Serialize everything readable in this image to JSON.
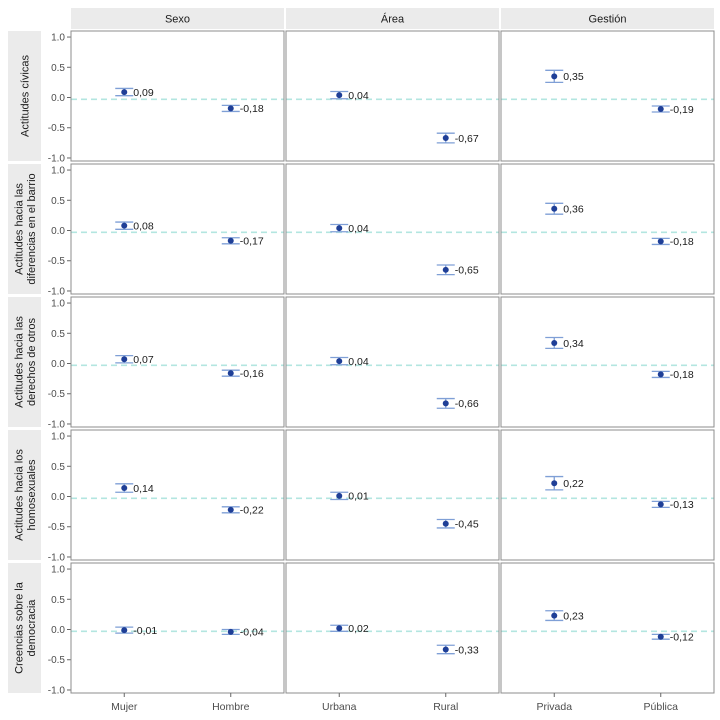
{
  "chart_data": {
    "type": "scatter",
    "column_facets": [
      "Sexo",
      "Área",
      "Gestión"
    ],
    "row_facets": [
      [
        "Actitudes cívicas"
      ],
      [
        "Actitudes hacia las",
        "diferencias en el barrio"
      ],
      [
        "Actitudes hacia las",
        "derechos de otros"
      ],
      [
        "Actitudes hacia los",
        "homosexuales"
      ],
      [
        "Creencias sobre la",
        "democracia"
      ]
    ],
    "x_categories": [
      [
        "Mujer",
        "Hombre"
      ],
      [
        "Urbana",
        "Rural"
      ],
      [
        "Privada",
        "Pública"
      ]
    ],
    "ylim": [
      -1.05,
      1.1
    ],
    "yticks": [
      1.0,
      0.5,
      0.0,
      -0.5,
      -1.0
    ],
    "ytick_labels": [
      "1.0",
      "0.5",
      "0.0",
      "-0.5",
      "-1.0"
    ],
    "reference_line_y": -0.03,
    "values": [
      [
        [
          0.09,
          -0.18
        ],
        [
          0.04,
          -0.67
        ],
        [
          0.35,
          -0.19
        ]
      ],
      [
        [
          0.08,
          -0.17
        ],
        [
          0.04,
          -0.65
        ],
        [
          0.36,
          -0.18
        ]
      ],
      [
        [
          0.07,
          -0.16
        ],
        [
          0.04,
          -0.66
        ],
        [
          0.34,
          -0.18
        ]
      ],
      [
        [
          0.14,
          -0.22
        ],
        [
          0.01,
          -0.45
        ],
        [
          0.22,
          -0.13
        ]
      ],
      [
        [
          -0.01,
          -0.04
        ],
        [
          0.02,
          -0.33
        ],
        [
          0.23,
          -0.12
        ]
      ]
    ],
    "value_labels": [
      [
        [
          "0,09",
          "-0,18"
        ],
        [
          "0,04",
          "-0,67"
        ],
        [
          "0,35",
          "-0,19"
        ]
      ],
      [
        [
          "0,08",
          "-0,17"
        ],
        [
          "0,04",
          "-0,65"
        ],
        [
          "0,36",
          "-0,18"
        ]
      ],
      [
        [
          "0,07",
          "-0,16"
        ],
        [
          "0,04",
          "-0,66"
        ],
        [
          "0,34",
          "-0,18"
        ]
      ],
      [
        [
          "0,14",
          "-0,22"
        ],
        [
          "0,01",
          "-0,45"
        ],
        [
          "0,22",
          "-0,13"
        ]
      ],
      [
        [
          "-0,01",
          "-0,04"
        ],
        [
          "0,02",
          "-0,33"
        ],
        [
          "0,23",
          "-0,12"
        ]
      ]
    ],
    "ci_halfwidth": [
      [
        [
          0.06,
          0.05
        ],
        [
          0.06,
          0.08
        ],
        [
          0.1,
          0.05
        ]
      ],
      [
        [
          0.06,
          0.05
        ],
        [
          0.06,
          0.08
        ],
        [
          0.09,
          0.05
        ]
      ],
      [
        [
          0.06,
          0.05
        ],
        [
          0.06,
          0.08
        ],
        [
          0.09,
          0.05
        ]
      ],
      [
        [
          0.07,
          0.05
        ],
        [
          0.06,
          0.07
        ],
        [
          0.11,
          0.05
        ]
      ],
      [
        [
          0.05,
          0.04
        ],
        [
          0.05,
          0.07
        ],
        [
          0.08,
          0.04
        ]
      ]
    ],
    "grid": false,
    "legend": "none",
    "colors": {
      "point": "#1f3f97",
      "errorbar": "#7f9fd6",
      "reference_line": "#b3e6e0",
      "strip_fill": "#ebebeb",
      "panel_border": "#8c8c8c"
    }
  }
}
